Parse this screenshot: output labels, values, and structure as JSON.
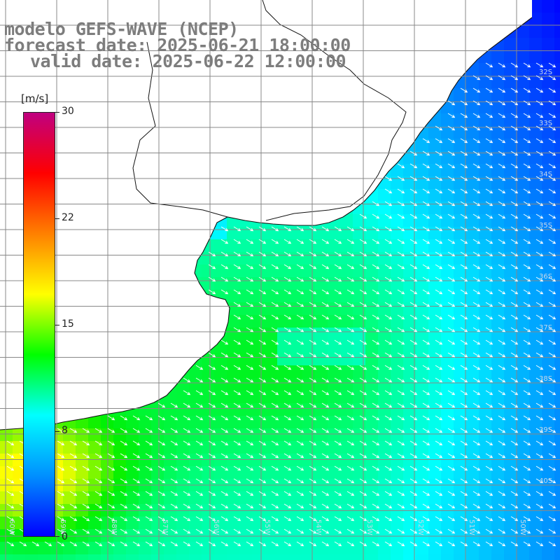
{
  "title": {
    "line1": "modelo GEFS-WAVE (NCEP)",
    "line2": "forecast date: 2025-06-21 18:00:00",
    "line3": "valid date: 2025-06-22 12:00:00"
  },
  "colorbar": {
    "units": "[m/s]",
    "ticks": [
      "30",
      "22",
      "15",
      "8",
      "0"
    ],
    "tick_values": [
      30,
      22,
      15,
      8,
      0
    ],
    "range": [
      0,
      30
    ],
    "colors": [
      "#0000ff",
      "#0090ff",
      "#00ffff",
      "#00ff00",
      "#ffff00",
      "#ff8000",
      "#ff0000",
      "#c00080"
    ]
  },
  "map": {
    "variable": "wind speed",
    "arrow_color": "#ffffff",
    "land_color": "#ffffff",
    "coastline_color": "#111111",
    "grid_color": "#888888",
    "lat_labels": [
      "32S",
      "33S",
      "34S",
      "35S",
      "36S",
      "37S",
      "38S",
      "39S",
      "40S"
    ],
    "lon_labels": [
      "60W",
      "59W",
      "58W",
      "57W",
      "56W",
      "55W",
      "54W",
      "53W",
      "52W",
      "51W",
      "50W"
    ],
    "wind_direction": "from northwest (arrows pointing southeast)"
  }
}
